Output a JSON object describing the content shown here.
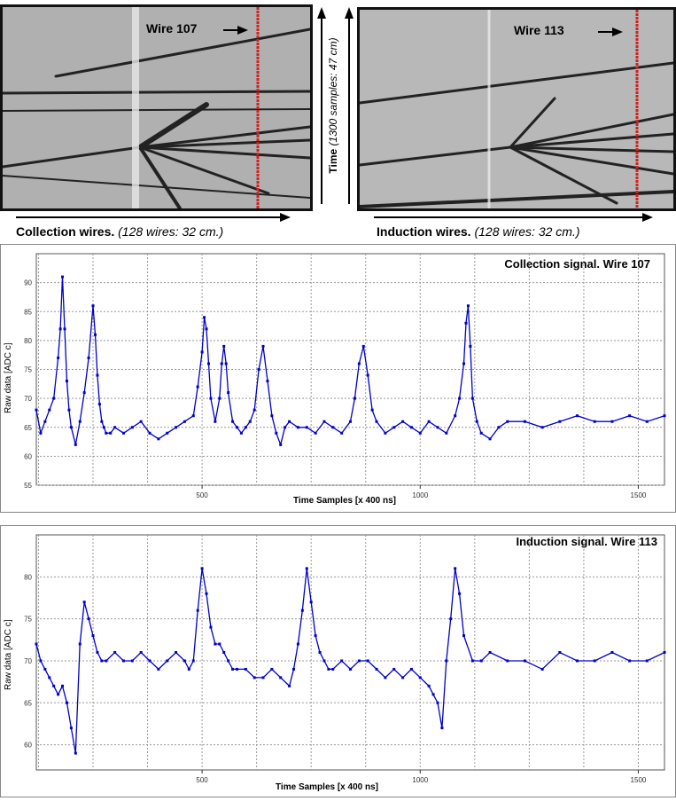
{
  "event_display": {
    "left_wire_label": "Wire 107",
    "right_wire_label": "Wire 113",
    "left_axis_title": "Collection wires.",
    "left_axis_detail": "(128 wires: 32 cm.)",
    "right_axis_title": "Induction wires.",
    "right_axis_detail": "(128 wires: 32 cm.)",
    "time_axis_title": "Time",
    "time_axis_detail": "(1300 samples: 47 cm)"
  },
  "colors": {
    "signal": "#0000cc",
    "marker": "#d42020",
    "grid": "#999999"
  },
  "chart_data": [
    {
      "type": "line",
      "title": "Collection signal.  Wire 107",
      "xlabel": "Time Samples [x 400 ns]",
      "ylabel": "Raw data [ADC c]",
      "xlim": [
        120,
        1560
      ],
      "ylim": [
        55,
        95
      ],
      "x_ticks": [
        500,
        1000,
        1500
      ],
      "y_ticks": [
        55,
        60,
        65,
        70,
        75,
        80,
        85,
        90
      ],
      "grid": true,
      "series": [
        {
          "values_note": "",
          "x": [
            120,
            130,
            140,
            150,
            160,
            170,
            175,
            180,
            185,
            190,
            195,
            200,
            210,
            220,
            230,
            240,
            250,
            255,
            260,
            265,
            270,
            275,
            280,
            290,
            300,
            320,
            340,
            360,
            380,
            400,
            420,
            440,
            460,
            480,
            490,
            500,
            505,
            510,
            515,
            520,
            530,
            540,
            545,
            550,
            555,
            560,
            570,
            580,
            590,
            600,
            610,
            620,
            630,
            640,
            650,
            660,
            670,
            680,
            690,
            700,
            720,
            740,
            760,
            780,
            800,
            820,
            840,
            850,
            860,
            870,
            880,
            890,
            900,
            920,
            940,
            960,
            980,
            1000,
            1020,
            1040,
            1060,
            1080,
            1090,
            1100,
            1105,
            1110,
            1115,
            1120,
            1130,
            1140,
            1160,
            1180,
            1200,
            1240,
            1280,
            1320,
            1360,
            1400,
            1440,
            1480,
            1520,
            1560
          ],
          "y": [
            68,
            64,
            66,
            68,
            70,
            77,
            82,
            91,
            82,
            73,
            68,
            65,
            62,
            66,
            71,
            77,
            86,
            81,
            74,
            69,
            66,
            65,
            64,
            64,
            65,
            64,
            65,
            66,
            64,
            63,
            64,
            65,
            66,
            67,
            72,
            78,
            84,
            82,
            76,
            70,
            66,
            70,
            76,
            79,
            76,
            71,
            66,
            65,
            64,
            65,
            66,
            68,
            75,
            79,
            73,
            67,
            64,
            62,
            65,
            66,
            65,
            65,
            64,
            66,
            65,
            64,
            66,
            70,
            76,
            79,
            74,
            68,
            66,
            64,
            65,
            66,
            65,
            64,
            66,
            65,
            64,
            67,
            70,
            76,
            83,
            86,
            79,
            70,
            66,
            64,
            63,
            65,
            66,
            66,
            65,
            66,
            67,
            66,
            66,
            67,
            66,
            67
          ]
        }
      ]
    },
    {
      "type": "line",
      "title": "Induction signal.  Wire 113",
      "xlabel": "Time Samples [x 400 ns]",
      "ylabel": "Raw data [ADC c]",
      "xlim": [
        120,
        1560
      ],
      "ylim": [
        57,
        85
      ],
      "x_ticks": [
        500,
        1000,
        1500
      ],
      "y_ticks": [
        60,
        65,
        70,
        75,
        80
      ],
      "grid": true,
      "series": [
        {
          "values_note": "",
          "x": [
            120,
            130,
            140,
            150,
            160,
            170,
            180,
            190,
            200,
            210,
            220,
            230,
            240,
            250,
            260,
            270,
            280,
            300,
            320,
            340,
            360,
            380,
            400,
            420,
            440,
            460,
            470,
            480,
            490,
            500,
            510,
            520,
            530,
            540,
            550,
            560,
            570,
            580,
            600,
            620,
            640,
            660,
            680,
            700,
            710,
            720,
            730,
            740,
            750,
            760,
            770,
            780,
            790,
            800,
            820,
            840,
            860,
            880,
            900,
            920,
            940,
            960,
            980,
            1000,
            1020,
            1030,
            1040,
            1050,
            1060,
            1070,
            1080,
            1090,
            1100,
            1120,
            1140,
            1160,
            1200,
            1240,
            1280,
            1320,
            1360,
            1400,
            1440,
            1480,
            1520,
            1560
          ],
          "y": [
            72,
            70,
            69,
            68,
            67,
            66,
            67,
            65,
            62,
            59,
            72,
            77,
            75,
            73,
            71,
            70,
            70,
            71,
            70,
            70,
            71,
            70,
            69,
            70,
            71,
            70,
            69,
            70,
            76,
            81,
            78,
            74,
            72,
            72,
            71,
            70,
            69,
            69,
            69,
            68,
            68,
            69,
            68,
            67,
            69,
            72,
            76,
            81,
            77,
            73,
            71,
            70,
            69,
            69,
            70,
            69,
            70,
            70,
            69,
            68,
            69,
            68,
            69,
            68,
            67,
            66,
            65,
            62,
            70,
            75,
            81,
            78,
            73,
            70,
            70,
            71,
            70,
            70,
            69,
            71,
            70,
            70,
            71,
            70,
            70,
            71
          ]
        }
      ]
    }
  ]
}
